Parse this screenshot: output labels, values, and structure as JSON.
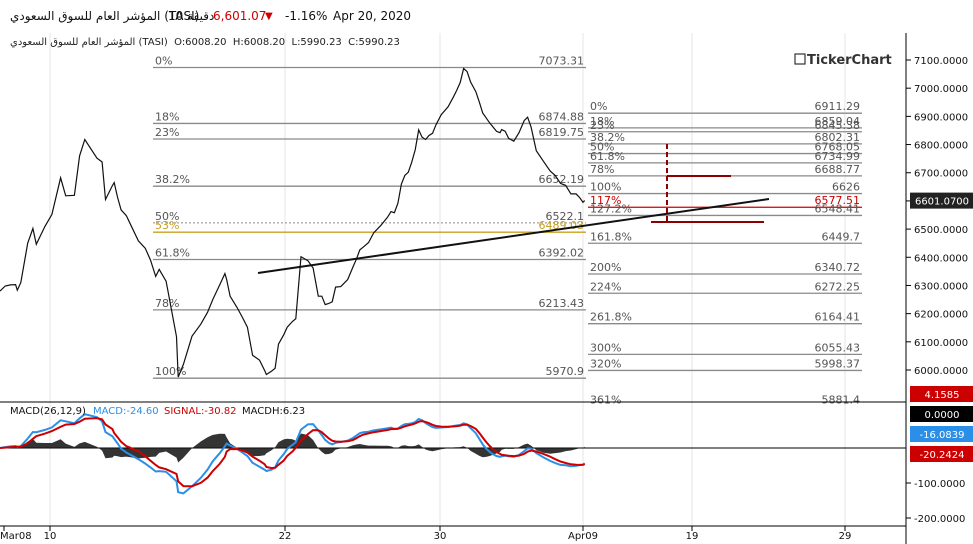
{
  "header": {
    "symbol_name": "المؤشر العام للسوق السعودي (TASI)",
    "interval": "10 دقيقة",
    "price": "6,601.07",
    "change_pct": "-1.16%",
    "date": "Apr 20, 2020",
    "down_arrow_color": "#cc0000"
  },
  "ohlc_line": "المؤشر العام للسوق السعودي (TASI)  O:6008.20  H:6008.20  L:5990.23  C:5990.23",
  "brand": "TickerChart",
  "current_price_tag": "6601.0700",
  "chart_data": {
    "type": "line",
    "main": {
      "ylim": [
        5950,
        7130
      ],
      "y_ticks": [
        "7100.0000",
        "7000.0000",
        "6900.0000",
        "6800.0000",
        "6700.0000",
        "6600.0000",
        "6500.0000",
        "6400.0000",
        "6300.0000",
        "6200.0000",
        "6100.0000",
        "6000.0000"
      ],
      "y_tick_values": [
        7100,
        7000,
        6900,
        6800,
        6700,
        6600,
        6500,
        6400,
        6300,
        6200,
        6100,
        6000
      ],
      "x_labels": [
        "Mar08",
        "10",
        "22",
        "30",
        "Apr09",
        "19",
        "29"
      ],
      "price_series": [
        [
          0,
          6280
        ],
        [
          0.3,
          6298
        ],
        [
          0.6,
          6302
        ],
        [
          0.9,
          6303
        ],
        [
          1.0,
          6283
        ],
        [
          1.2,
          6310
        ],
        [
          1.6,
          6450
        ],
        [
          1.9,
          6502
        ],
        [
          2.1,
          6446
        ],
        [
          2.6,
          6510
        ],
        [
          3.0,
          6552
        ],
        [
          3.5,
          6682
        ],
        [
          3.8,
          6618
        ],
        [
          4.3,
          6620
        ],
        [
          4.6,
          6760
        ],
        [
          4.9,
          6818
        ],
        [
          5.6,
          6752
        ],
        [
          5.9,
          6738
        ],
        [
          6.1,
          6605
        ],
        [
          6.5,
          6655
        ],
        [
          6.6,
          6665
        ],
        [
          6.8,
          6612
        ],
        [
          7.0,
          6568
        ],
        [
          7.3,
          6548
        ],
        [
          8.0,
          6458
        ],
        [
          8.4,
          6432
        ],
        [
          8.7,
          6390
        ],
        [
          9.0,
          6332
        ],
        [
          9.2,
          6357
        ],
        [
          9.6,
          6315
        ],
        [
          10.2,
          6118
        ],
        [
          10.3,
          5975
        ],
        [
          10.6,
          6020
        ],
        [
          11.1,
          6120
        ],
        [
          11.6,
          6162
        ],
        [
          12.0,
          6205
        ],
        [
          12.3,
          6250
        ],
        [
          12.7,
          6302
        ],
        [
          13.0,
          6342
        ],
        [
          13.1,
          6322
        ],
        [
          13.3,
          6262
        ],
        [
          13.7,
          6222
        ],
        [
          14.0,
          6188
        ],
        [
          14.3,
          6152
        ],
        [
          14.6,
          6052
        ],
        [
          15.0,
          6035
        ],
        [
          15.3,
          5998
        ],
        [
          15.4,
          5984
        ],
        [
          15.7,
          5996
        ],
        [
          15.9,
          6006
        ],
        [
          16.1,
          6092
        ],
        [
          16.4,
          6125
        ],
        [
          16.6,
          6152
        ],
        [
          16.9,
          6172
        ],
        [
          17.1,
          6182
        ],
        [
          17.4,
          6402
        ],
        [
          17.8,
          6388
        ],
        [
          18.1,
          6362
        ],
        [
          18.4,
          6262
        ],
        [
          18.6,
          6262
        ],
        [
          18.8,
          6232
        ],
        [
          19.0,
          6236
        ],
        [
          19.2,
          6242
        ],
        [
          19.4,
          6294
        ],
        [
          19.7,
          6296
        ],
        [
          20.1,
          6321
        ],
        [
          20.4,
          6365
        ],
        [
          20.6,
          6393
        ],
        [
          20.8,
          6426
        ],
        [
          21.0,
          6436
        ],
        [
          21.3,
          6452
        ],
        [
          21.6,
          6487
        ],
        [
          22.0,
          6512
        ],
        [
          22.4,
          6542
        ],
        [
          22.6,
          6562
        ],
        [
          22.8,
          6558
        ],
        [
          23.0,
          6592
        ],
        [
          23.2,
          6660
        ],
        [
          23.4,
          6690
        ],
        [
          23.6,
          6702
        ],
        [
          23.8,
          6737
        ],
        [
          24.0,
          6781
        ],
        [
          24.2,
          6852
        ],
        [
          24.4,
          6826
        ],
        [
          24.6,
          6818
        ],
        [
          24.8,
          6832
        ],
        [
          25.0,
          6840
        ],
        [
          25.2,
          6870
        ],
        [
          25.5,
          6906
        ],
        [
          25.9,
          6934
        ],
        [
          26.2,
          6968
        ],
        [
          26.4,
          6992
        ],
        [
          26.6,
          7020
        ],
        [
          26.8,
          7070
        ],
        [
          27.0,
          7059
        ],
        [
          27.2,
          7022
        ],
        [
          27.5,
          6988
        ],
        [
          27.7,
          6952
        ],
        [
          27.9,
          6912
        ],
        [
          28.1,
          6895
        ],
        [
          28.3,
          6877
        ],
        [
          28.5,
          6862
        ],
        [
          28.7,
          6847
        ],
        [
          28.9,
          6842
        ],
        [
          29.0,
          6853
        ],
        [
          29.2,
          6847
        ],
        [
          29.4,
          6822
        ],
        [
          29.7,
          6812
        ],
        [
          30.0,
          6842
        ],
        [
          30.3,
          6885
        ],
        [
          30.5,
          6897
        ],
        [
          30.7,
          6862
        ],
        [
          31.0,
          6778
        ],
        [
          31.4,
          6742
        ],
        [
          31.8,
          6706
        ],
        [
          32.1,
          6690
        ],
        [
          32.4,
          6662
        ],
        [
          32.7,
          6655
        ],
        [
          33.0,
          6625
        ],
        [
          33.3,
          6625
        ],
        [
          33.5,
          6612
        ],
        [
          33.7,
          6595
        ],
        [
          33.8,
          6601
        ]
      ],
      "fib_set_1": [
        {
          "label": "0%",
          "value": 7073.31
        },
        {
          "label": "18%",
          "value": 6874.88
        },
        {
          "label": "23%",
          "value": 6819.75
        },
        {
          "label": "38.2%",
          "value": 6652.19
        },
        {
          "label": "50%",
          "value": 6522.1
        },
        {
          "label": "53%",
          "value": 6489.03
        },
        {
          "label": "61.8%",
          "value": 6392.02
        },
        {
          "label": "78%",
          "value": 6213.43
        },
        {
          "label": "100%",
          "value": 5970.9
        }
      ],
      "fib_set_2": [
        {
          "label": "0%",
          "value": 6911.29
        },
        {
          "label": "18%",
          "value": 6859.04
        },
        {
          "label": "23%",
          "value": 6845.38
        },
        {
          "label": "38.2%",
          "value": 6802.31
        },
        {
          "label": "50%",
          "value": 6768.05
        },
        {
          "label": "61.8%",
          "value": 6734.99
        },
        {
          "label": "78%",
          "value": 6688.77
        },
        {
          "label": "100%",
          "value": 6626
        },
        {
          "label": "117%",
          "value": 6577.51
        },
        {
          "label": "127.2%",
          "value": 6548.41
        },
        {
          "label": "161.8%",
          "value": 6449.7
        },
        {
          "label": "200%",
          "value": 6340.72
        },
        {
          "label": "224%",
          "value": 6272.25
        },
        {
          "label": "261.8%",
          "value": 6164.41
        },
        {
          "label": "300%",
          "value": 6055.43
        },
        {
          "label": "320%",
          "value": 5998.37
        },
        {
          "label": "361%",
          "value": 5881.4
        }
      ]
    },
    "macd": {
      "title": "MACD(26,12,9)",
      "macd_label": "MACD:-24.60",
      "signal_label": "SIGNAL:-30.82",
      "hist_label": "MACDH:6.23",
      "ylim": [
        -215,
        25
      ],
      "y_ticks": [
        "-100.0000",
        "-200.0000"
      ],
      "y_tick_values": [
        -100,
        -200
      ],
      "tags": [
        "4.1585",
        "0.0000",
        "-16.0839",
        "-20.2424"
      ],
      "tag_colors": [
        "#cc0000",
        "#000000",
        "#2b8fe8",
        "#cc0000"
      ],
      "series_colors": {
        "macd": "#2b8fe8",
        "signal": "#cc0000",
        "hist": "#000000"
      }
    }
  }
}
